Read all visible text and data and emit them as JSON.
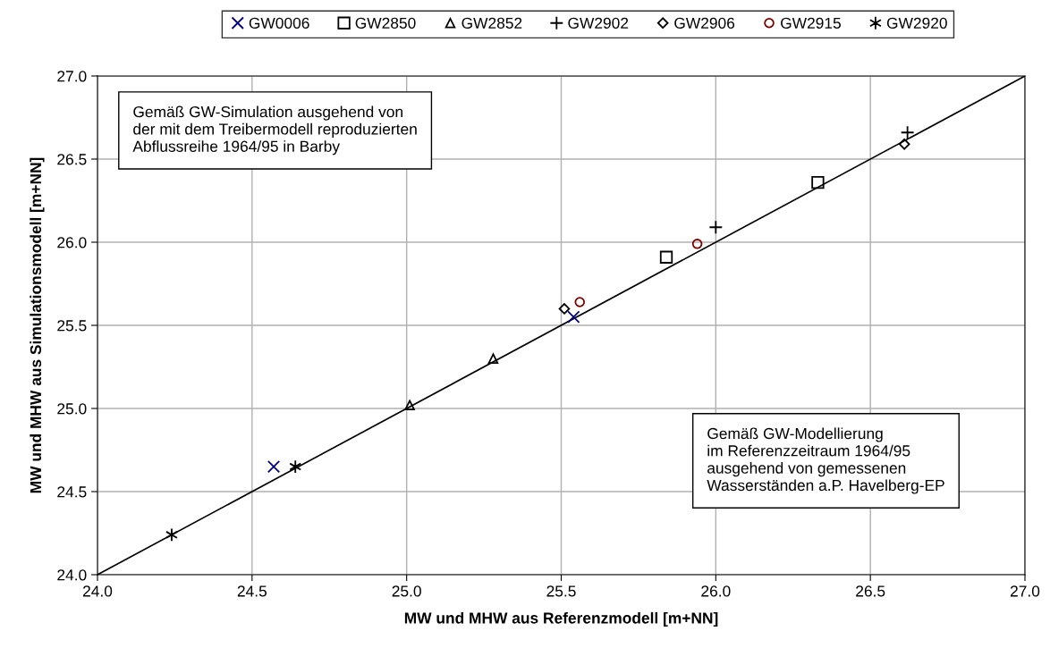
{
  "chart_data": {
    "type": "scatter",
    "xlabel": "MW und MHW aus Referenzmodell [m+NN]",
    "ylabel": "MW und MHW aus Simulationsmodell [m+NN]",
    "xlim": [
      24.0,
      27.0
    ],
    "ylim": [
      24.0,
      27.0
    ],
    "xticks": [
      {
        "value": 24.0,
        "label": "24.0"
      },
      {
        "value": 24.5,
        "label": "24.5"
      },
      {
        "value": 25.0,
        "label": "25.0"
      },
      {
        "value": 25.5,
        "label": "25.5"
      },
      {
        "value": 26.0,
        "label": "26.0"
      },
      {
        "value": 26.5,
        "label": "26.5"
      },
      {
        "value": 27.0,
        "label": "27.0"
      }
    ],
    "yticks": [
      {
        "value": 24.0,
        "label": "24.0"
      },
      {
        "value": 24.5,
        "label": "24.5"
      },
      {
        "value": 25.0,
        "label": "25.0"
      },
      {
        "value": 25.5,
        "label": "25.5"
      },
      {
        "value": 26.0,
        "label": "26.0"
      },
      {
        "value": 26.5,
        "label": "26.5"
      },
      {
        "value": 27.0,
        "label": "27.0"
      }
    ],
    "grid": true,
    "legend": "top",
    "annotations": [
      "Gemäß GW-Simulation ausgehend von\nder mit dem Treibermodell reproduzierten\nAbflussreihe 1964/95 in Barby",
      "Gemäß GW-Modellierung\nim Referenzzeitraum 1964/95\nausgehend von gemessenen\nWasserständen a.P. Havelberg-EP"
    ],
    "series": [
      {
        "type": "line",
        "color": "#000000",
        "marker": "none",
        "line_style": "solid",
        "x": [
          24.0,
          27.0
        ],
        "values": [
          24.0,
          27.0
        ]
      },
      {
        "name": "GW0006",
        "color": "#000080",
        "marker": "cross",
        "x": [
          24.57,
          25.54
        ],
        "values": [
          24.65,
          25.55
        ]
      },
      {
        "name": "GW2850",
        "color": "#000000",
        "marker": "square",
        "x": [
          25.84,
          26.33
        ],
        "values": [
          25.91,
          26.36
        ]
      },
      {
        "name": "GW2852",
        "color": "#000000",
        "marker": "triangle",
        "x": [
          25.01,
          25.28
        ],
        "values": [
          25.02,
          25.3
        ]
      },
      {
        "name": "GW2902",
        "color": "#000000",
        "marker": "plus",
        "x": [
          26.0,
          26.62
        ],
        "values": [
          26.09,
          26.66
        ]
      },
      {
        "name": "GW2906",
        "color": "#000000",
        "marker": "diamond",
        "x": [
          25.51,
          26.61
        ],
        "values": [
          25.6,
          26.59
        ]
      },
      {
        "name": "GW2915",
        "color": "#800000",
        "marker": "circle",
        "x": [
          25.56,
          25.94
        ],
        "values": [
          25.64,
          25.99
        ]
      },
      {
        "name": "GW2920",
        "color": "#000000",
        "x": [
          24.24,
          24.64
        ],
        "values": [
          24.24,
          24.65
        ]
      }
    ]
  }
}
